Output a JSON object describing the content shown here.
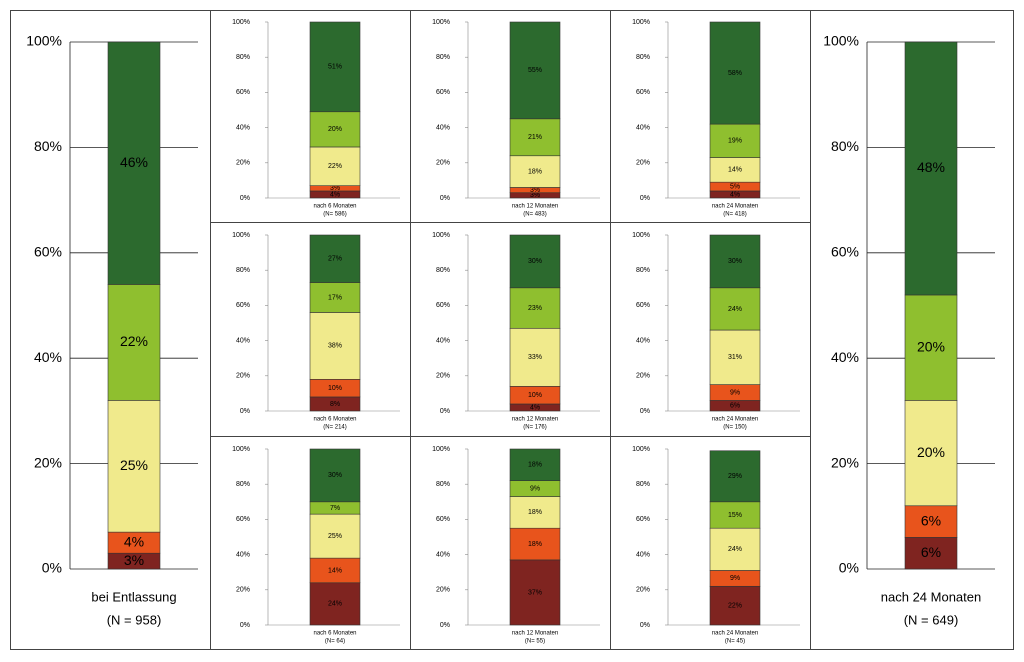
{
  "chart_data": [
    {
      "type": "stacked-bar",
      "categories": [
        "bei Entlassung"
      ],
      "n_label": "(N = 958)",
      "ylim": [
        0,
        100
      ],
      "yticks": [
        {
          "value": 0,
          "label": "0%"
        },
        {
          "value": 20,
          "label": "20%"
        },
        {
          "value": 40,
          "label": "40%"
        },
        {
          "value": 60,
          "label": "60%"
        },
        {
          "value": 80,
          "label": "80%"
        },
        {
          "value": 100,
          "label": "100%"
        }
      ],
      "grid": true,
      "series": [
        {
          "color": "#7f2420",
          "values": [
            3
          ],
          "value_labels": [
            "3%"
          ]
        },
        {
          "color": "#e8541c",
          "values": [
            4
          ],
          "value_labels": [
            "4%"
          ]
        },
        {
          "color": "#f0ea8c",
          "values": [
            25
          ],
          "value_labels": [
            "25%"
          ]
        },
        {
          "color": "#8fbf2f",
          "values": [
            22
          ],
          "value_labels": [
            "22%"
          ]
        },
        {
          "color": "#2c6a2e",
          "values": [
            46
          ],
          "value_labels": [
            "46%"
          ]
        }
      ]
    },
    {
      "type": "stacked-bar",
      "categories": [
        "nach 6 Monaten"
      ],
      "n_label": "(N= 586)",
      "ylim": [
        0,
        100
      ],
      "yticks": [
        {
          "value": 0,
          "label": "0%"
        },
        {
          "value": 20,
          "label": "20%"
        },
        {
          "value": 40,
          "label": "40%"
        },
        {
          "value": 60,
          "label": "60%"
        },
        {
          "value": 80,
          "label": "80%"
        },
        {
          "value": 100,
          "label": "100%"
        }
      ],
      "grid": false,
      "series": [
        {
          "color": "#7f2420",
          "values": [
            4
          ],
          "value_labels": [
            "4%"
          ]
        },
        {
          "color": "#e8541c",
          "values": [
            3
          ],
          "value_labels": [
            "3%"
          ]
        },
        {
          "color": "#f0ea8c",
          "values": [
            22
          ],
          "value_labels": [
            "22%"
          ]
        },
        {
          "color": "#8fbf2f",
          "values": [
            20
          ],
          "value_labels": [
            "20%"
          ]
        },
        {
          "color": "#2c6a2e",
          "values": [
            51
          ],
          "value_labels": [
            "51%"
          ]
        }
      ]
    },
    {
      "type": "stacked-bar",
      "categories": [
        "nach 12 Monaten"
      ],
      "n_label": "(N= 483)",
      "ylim": [
        0,
        100
      ],
      "yticks": [
        {
          "value": 0,
          "label": "0%"
        },
        {
          "value": 20,
          "label": "20%"
        },
        {
          "value": 40,
          "label": "40%"
        },
        {
          "value": 60,
          "label": "60%"
        },
        {
          "value": 80,
          "label": "80%"
        },
        {
          "value": 100,
          "label": "100%"
        }
      ],
      "grid": false,
      "series": [
        {
          "color": "#7f2420",
          "values": [
            3
          ],
          "value_labels": [
            "3%"
          ]
        },
        {
          "color": "#e8541c",
          "values": [
            3
          ],
          "value_labels": [
            "3%"
          ]
        },
        {
          "color": "#f0ea8c",
          "values": [
            18
          ],
          "value_labels": [
            "18%"
          ]
        },
        {
          "color": "#8fbf2f",
          "values": [
            21
          ],
          "value_labels": [
            "21%"
          ]
        },
        {
          "color": "#2c6a2e",
          "values": [
            55
          ],
          "value_labels": [
            "55%"
          ]
        }
      ]
    },
    {
      "type": "stacked-bar",
      "categories": [
        "nach 24 Monaten"
      ],
      "n_label": "(N= 418)",
      "ylim": [
        0,
        100
      ],
      "yticks": [
        {
          "value": 0,
          "label": "0%"
        },
        {
          "value": 20,
          "label": "20%"
        },
        {
          "value": 40,
          "label": "40%"
        },
        {
          "value": 60,
          "label": "60%"
        },
        {
          "value": 80,
          "label": "80%"
        },
        {
          "value": 100,
          "label": "100%"
        }
      ],
      "grid": false,
      "series": [
        {
          "color": "#7f2420",
          "values": [
            4
          ],
          "value_labels": [
            "4%"
          ]
        },
        {
          "color": "#e8541c",
          "values": [
            5
          ],
          "value_labels": [
            "5%"
          ]
        },
        {
          "color": "#f0ea8c",
          "values": [
            14
          ],
          "value_labels": [
            "14%"
          ]
        },
        {
          "color": "#8fbf2f",
          "values": [
            19
          ],
          "value_labels": [
            "19%"
          ]
        },
        {
          "color": "#2c6a2e",
          "values": [
            58
          ],
          "value_labels": [
            "58%"
          ]
        }
      ]
    },
    {
      "type": "stacked-bar",
      "categories": [
        "nach 6 Monaten"
      ],
      "n_label": "(N= 214)",
      "ylim": [
        0,
        100
      ],
      "yticks": [
        {
          "value": 0,
          "label": "0%"
        },
        {
          "value": 20,
          "label": "20%"
        },
        {
          "value": 40,
          "label": "40%"
        },
        {
          "value": 60,
          "label": "60%"
        },
        {
          "value": 80,
          "label": "80%"
        },
        {
          "value": 100,
          "label": "100%"
        }
      ],
      "grid": false,
      "series": [
        {
          "color": "#7f2420",
          "values": [
            8
          ],
          "value_labels": [
            "8%"
          ]
        },
        {
          "color": "#e8541c",
          "values": [
            10
          ],
          "value_labels": [
            "10%"
          ]
        },
        {
          "color": "#f0ea8c",
          "values": [
            38
          ],
          "value_labels": [
            "38%"
          ]
        },
        {
          "color": "#8fbf2f",
          "values": [
            17
          ],
          "value_labels": [
            "17%"
          ]
        },
        {
          "color": "#2c6a2e",
          "values": [
            27
          ],
          "value_labels": [
            "27%"
          ]
        }
      ]
    },
    {
      "type": "stacked-bar",
      "categories": [
        "nach 12 Monaten"
      ],
      "n_label": "(N= 176)",
      "ylim": [
        0,
        100
      ],
      "yticks": [
        {
          "value": 0,
          "label": "0%"
        },
        {
          "value": 20,
          "label": "20%"
        },
        {
          "value": 40,
          "label": "40%"
        },
        {
          "value": 60,
          "label": "60%"
        },
        {
          "value": 80,
          "label": "80%"
        },
        {
          "value": 100,
          "label": "100%"
        }
      ],
      "grid": false,
      "series": [
        {
          "color": "#7f2420",
          "values": [
            4
          ],
          "value_labels": [
            "4%"
          ]
        },
        {
          "color": "#e8541c",
          "values": [
            10
          ],
          "value_labels": [
            "10%"
          ]
        },
        {
          "color": "#f0ea8c",
          "values": [
            33
          ],
          "value_labels": [
            "33%"
          ]
        },
        {
          "color": "#8fbf2f",
          "values": [
            23
          ],
          "value_labels": [
            "23%"
          ]
        },
        {
          "color": "#2c6a2e",
          "values": [
            30
          ],
          "value_labels": [
            "30%"
          ]
        }
      ]
    },
    {
      "type": "stacked-bar",
      "categories": [
        "nach 24 Monaten"
      ],
      "n_label": "(N= 150)",
      "ylim": [
        0,
        100
      ],
      "yticks": [
        {
          "value": 0,
          "label": "0%"
        },
        {
          "value": 20,
          "label": "20%"
        },
        {
          "value": 40,
          "label": "40%"
        },
        {
          "value": 60,
          "label": "60%"
        },
        {
          "value": 80,
          "label": "80%"
        },
        {
          "value": 100,
          "label": "100%"
        }
      ],
      "grid": false,
      "series": [
        {
          "color": "#7f2420",
          "values": [
            6
          ],
          "value_labels": [
            "6%"
          ]
        },
        {
          "color": "#e8541c",
          "values": [
            9
          ],
          "value_labels": [
            "9%"
          ]
        },
        {
          "color": "#f0ea8c",
          "values": [
            31
          ],
          "value_labels": [
            "31%"
          ]
        },
        {
          "color": "#8fbf2f",
          "values": [
            24
          ],
          "value_labels": [
            "24%"
          ]
        },
        {
          "color": "#2c6a2e",
          "values": [
            30
          ],
          "value_labels": [
            "30%"
          ]
        }
      ]
    },
    {
      "type": "stacked-bar",
      "categories": [
        "nach 6 Monaten"
      ],
      "n_label": "(N= 64)",
      "ylim": [
        0,
        100
      ],
      "yticks": [
        {
          "value": 0,
          "label": "0%"
        },
        {
          "value": 20,
          "label": "20%"
        },
        {
          "value": 40,
          "label": "40%"
        },
        {
          "value": 60,
          "label": "60%"
        },
        {
          "value": 80,
          "label": "80%"
        },
        {
          "value": 100,
          "label": "100%"
        }
      ],
      "grid": false,
      "series": [
        {
          "color": "#7f2420",
          "values": [
            24
          ],
          "value_labels": [
            "24%"
          ]
        },
        {
          "color": "#e8541c",
          "values": [
            14
          ],
          "value_labels": [
            "14%"
          ]
        },
        {
          "color": "#f0ea8c",
          "values": [
            25
          ],
          "value_labels": [
            "25%"
          ]
        },
        {
          "color": "#8fbf2f",
          "values": [
            7
          ],
          "value_labels": [
            "7%"
          ]
        },
        {
          "color": "#2c6a2e",
          "values": [
            30
          ],
          "value_labels": [
            "30%"
          ]
        }
      ]
    },
    {
      "type": "stacked-bar",
      "categories": [
        "nach 12 Monaten"
      ],
      "n_label": "(N= 55)",
      "ylim": [
        0,
        100
      ],
      "yticks": [
        {
          "value": 0,
          "label": "0%"
        },
        {
          "value": 20,
          "label": "20%"
        },
        {
          "value": 40,
          "label": "40%"
        },
        {
          "value": 60,
          "label": "60%"
        },
        {
          "value": 80,
          "label": "80%"
        },
        {
          "value": 100,
          "label": "100%"
        }
      ],
      "grid": false,
      "series": [
        {
          "color": "#7f2420",
          "values": [
            37
          ],
          "value_labels": [
            "37%"
          ]
        },
        {
          "color": "#e8541c",
          "values": [
            18
          ],
          "value_labels": [
            "18%"
          ]
        },
        {
          "color": "#f0ea8c",
          "values": [
            18
          ],
          "value_labels": [
            "18%"
          ]
        },
        {
          "color": "#8fbf2f",
          "values": [
            9
          ],
          "value_labels": [
            "9%"
          ]
        },
        {
          "color": "#2c6a2e",
          "values": [
            18
          ],
          "value_labels": [
            "18%"
          ]
        }
      ]
    },
    {
      "type": "stacked-bar",
      "categories": [
        "nach 24 Monaten"
      ],
      "n_label": "(N= 45)",
      "ylim": [
        0,
        100
      ],
      "yticks": [
        {
          "value": 0,
          "label": "0%"
        },
        {
          "value": 20,
          "label": "20%"
        },
        {
          "value": 40,
          "label": "40%"
        },
        {
          "value": 60,
          "label": "60%"
        },
        {
          "value": 80,
          "label": "80%"
        },
        {
          "value": 100,
          "label": "100%"
        }
      ],
      "grid": false,
      "series": [
        {
          "color": "#7f2420",
          "values": [
            22
          ],
          "value_labels": [
            "22%"
          ]
        },
        {
          "color": "#e8541c",
          "values": [
            9
          ],
          "value_labels": [
            "9%"
          ]
        },
        {
          "color": "#f0ea8c",
          "values": [
            24
          ],
          "value_labels": [
            "24%"
          ]
        },
        {
          "color": "#8fbf2f",
          "values": [
            15
          ],
          "value_labels": [
            "15%"
          ]
        },
        {
          "color": "#2c6a2e",
          "values": [
            29
          ],
          "value_labels": [
            "29%"
          ]
        }
      ]
    },
    {
      "type": "stacked-bar",
      "categories": [
        "nach 24 Monaten"
      ],
      "n_label": "(N = 649)",
      "ylim": [
        0,
        100
      ],
      "yticks": [
        {
          "value": 0,
          "label": "0%"
        },
        {
          "value": 20,
          "label": "20%"
        },
        {
          "value": 40,
          "label": "40%"
        },
        {
          "value": 60,
          "label": "60%"
        },
        {
          "value": 80,
          "label": "80%"
        },
        {
          "value": 100,
          "label": "100%"
        }
      ],
      "grid": true,
      "series": [
        {
          "color": "#7f2420",
          "values": [
            6
          ],
          "value_labels": [
            "6%"
          ]
        },
        {
          "color": "#e8541c",
          "values": [
            6
          ],
          "value_labels": [
            "6%"
          ]
        },
        {
          "color": "#f0ea8c",
          "values": [
            20
          ],
          "value_labels": [
            "20%"
          ]
        },
        {
          "color": "#8fbf2f",
          "values": [
            20
          ],
          "value_labels": [
            "20%"
          ]
        },
        {
          "color": "#2c6a2e",
          "values": [
            48
          ],
          "value_labels": [
            "48%"
          ]
        }
      ]
    }
  ]
}
